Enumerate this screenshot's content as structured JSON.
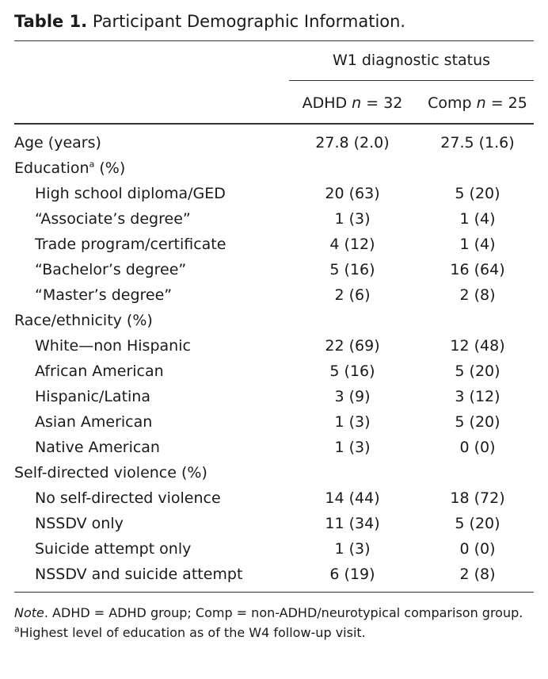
{
  "caption": {
    "label": "Table 1.",
    "title": "Participant Demographic Information."
  },
  "header": {
    "group": "W1 diagnostic status",
    "col1_name": "ADHD ",
    "col1_n": "n",
    "col1_count": " = 32",
    "col2_name": "Comp ",
    "col2_n": "n",
    "col2_count": " = 25"
  },
  "rows": [
    {
      "label": "Age (years)",
      "sup": "",
      "after": "",
      "adhd": "27.8 (2.0)",
      "comp": "27.5 (1.6)",
      "indent": false
    },
    {
      "label": "Education",
      "sup": "a",
      "after": " (%)",
      "adhd": "",
      "comp": "",
      "indent": false
    },
    {
      "label": "High school diploma/GED",
      "sup": "",
      "after": "",
      "adhd": "20 (63)",
      "comp": "5 (20)",
      "indent": true
    },
    {
      "label": "“Associate’s degree”",
      "sup": "",
      "after": "",
      "adhd": "1 (3)",
      "comp": "1 (4)",
      "indent": true
    },
    {
      "label": "Trade program/certificate",
      "sup": "",
      "after": "",
      "adhd": "4 (12)",
      "comp": "1 (4)",
      "indent": true
    },
    {
      "label": "“Bachelor’s degree”",
      "sup": "",
      "after": "",
      "adhd": "5 (16)",
      "comp": "16 (64)",
      "indent": true
    },
    {
      "label": "“Master’s degree”",
      "sup": "",
      "after": "",
      "adhd": "2 (6)",
      "comp": "2 (8)",
      "indent": true
    },
    {
      "label": "Race/ethnicity (%)",
      "sup": "",
      "after": "",
      "adhd": "",
      "comp": "",
      "indent": false
    },
    {
      "label": "White—non Hispanic",
      "sup": "",
      "after": "",
      "adhd": "22 (69)",
      "comp": "12 (48)",
      "indent": true
    },
    {
      "label": "African American",
      "sup": "",
      "after": "",
      "adhd": "5 (16)",
      "comp": "5 (20)",
      "indent": true
    },
    {
      "label": "Hispanic/Latina",
      "sup": "",
      "after": "",
      "adhd": "3 (9)",
      "comp": "3 (12)",
      "indent": true
    },
    {
      "label": "Asian American",
      "sup": "",
      "after": "",
      "adhd": "1 (3)",
      "comp": "5 (20)",
      "indent": true
    },
    {
      "label": "Native American",
      "sup": "",
      "after": "",
      "adhd": "1 (3)",
      "comp": "0 (0)",
      "indent": true
    },
    {
      "label": "Self-directed violence (%)",
      "sup": "",
      "after": "",
      "adhd": "",
      "comp": "",
      "indent": false
    },
    {
      "label": "No self-directed violence",
      "sup": "",
      "after": "",
      "adhd": "14 (44)",
      "comp": "18 (72)",
      "indent": true
    },
    {
      "label": "NSSDV only",
      "sup": "",
      "after": "",
      "adhd": "11 (34)",
      "comp": "5 (20)",
      "indent": true
    },
    {
      "label": "Suicide attempt only",
      "sup": "",
      "after": "",
      "adhd": "1 (3)",
      "comp": "0 (0)",
      "indent": true
    },
    {
      "label": "NSSDV and suicide attempt",
      "sup": "",
      "after": "",
      "adhd": "6 (19)",
      "comp": "2 (8)",
      "indent": true
    }
  ],
  "notes": {
    "note_label": "Note",
    "note_text": ". ADHD = ADHD group; Comp = non-ADHD/neurotypical comparison group.",
    "footnote_mark": "a",
    "footnote_text": "Highest level of education as of the W4 follow-up visit."
  }
}
